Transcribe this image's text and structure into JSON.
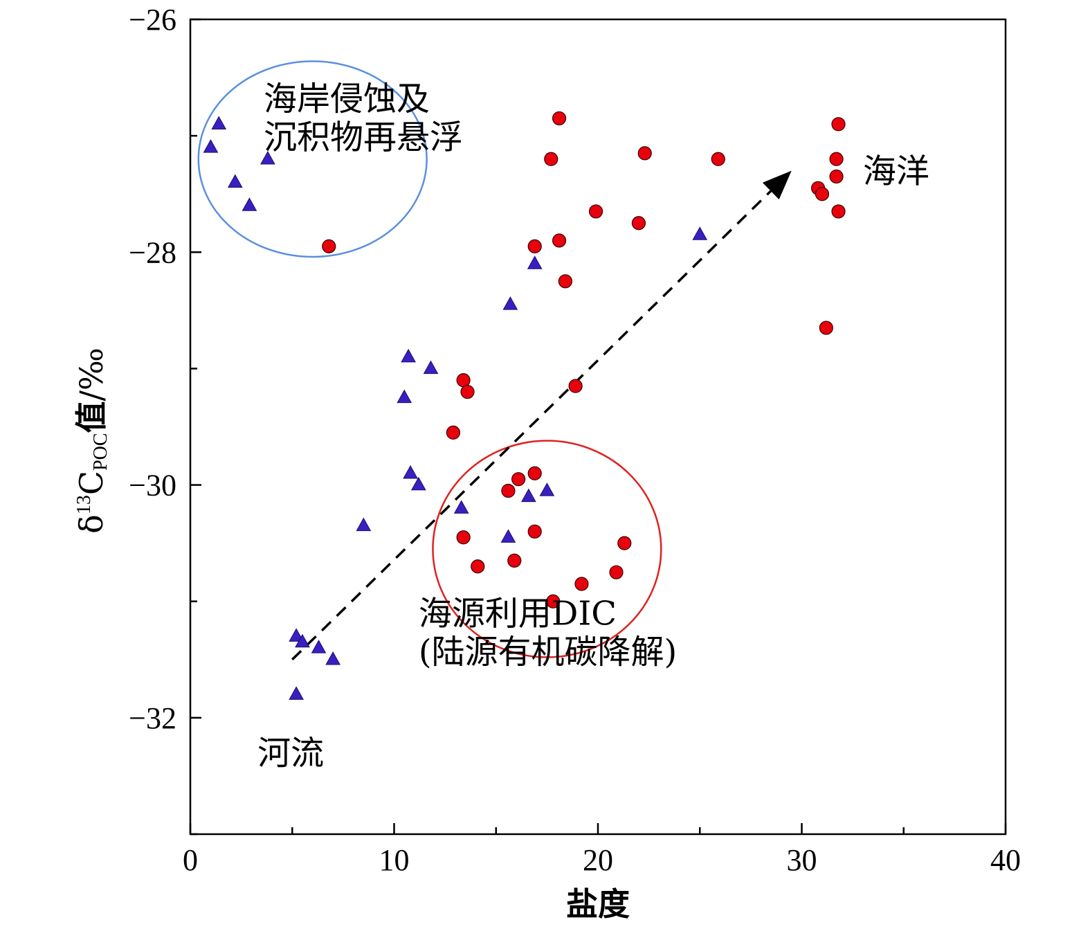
{
  "chart_data": {
    "type": "scatter",
    "title": "",
    "xlabel": "盐度",
    "ylabel": {
      "prefix": "δ",
      "superscript": "13",
      "symbol": "C",
      "subscript": "POC",
      "suffix": "值",
      "unit": "/‰"
    },
    "xlim": [
      0,
      40
    ],
    "ylim": [
      -33,
      -26
    ],
    "x_ticks": [
      0,
      10,
      20,
      30,
      40
    ],
    "y_ticks": [
      -26,
      -28,
      -30,
      -32
    ],
    "x_tick_labels": [
      "0",
      "10",
      "20",
      "30",
      "40"
    ],
    "y_tick_labels": [
      "−26",
      "−28",
      "−30",
      "−32"
    ],
    "grid": false,
    "series": [
      {
        "marker": "triangle",
        "color": "#3a1fc0",
        "points": [
          [
            1.0,
            -27.1
          ],
          [
            1.4,
            -26.9
          ],
          [
            2.2,
            -27.4
          ],
          [
            2.9,
            -27.6
          ],
          [
            3.8,
            -27.2
          ],
          [
            5.2,
            -31.3
          ],
          [
            5.5,
            -31.35
          ],
          [
            6.3,
            -31.4
          ],
          [
            7.0,
            -31.5
          ],
          [
            5.2,
            -31.8
          ],
          [
            8.5,
            -30.35
          ],
          [
            10.5,
            -29.25
          ],
          [
            10.7,
            -28.9
          ],
          [
            11.8,
            -29.0
          ],
          [
            10.8,
            -29.9
          ],
          [
            11.2,
            -30.0
          ],
          [
            13.3,
            -30.2
          ],
          [
            15.7,
            -28.45
          ],
          [
            15.6,
            -30.45
          ],
          [
            16.6,
            -30.1
          ],
          [
            17.5,
            -30.05
          ],
          [
            16.9,
            -28.1
          ],
          [
            25.0,
            -27.85
          ]
        ]
      },
      {
        "marker": "circle",
        "color": "#e8000d",
        "points": [
          [
            6.8,
            -27.95
          ],
          [
            13.4,
            -29.1
          ],
          [
            13.6,
            -29.2
          ],
          [
            12.9,
            -29.55
          ],
          [
            13.4,
            -30.45
          ],
          [
            14.1,
            -30.7
          ],
          [
            15.6,
            -30.05
          ],
          [
            16.1,
            -29.95
          ],
          [
            16.9,
            -29.9
          ],
          [
            16.9,
            -30.4
          ],
          [
            15.9,
            -30.65
          ],
          [
            17.8,
            -31.0
          ],
          [
            19.2,
            -30.85
          ],
          [
            20.9,
            -30.75
          ],
          [
            21.3,
            -30.5
          ],
          [
            18.9,
            -29.15
          ],
          [
            16.9,
            -27.95
          ],
          [
            18.1,
            -27.9
          ],
          [
            18.4,
            -28.25
          ],
          [
            17.7,
            -27.2
          ],
          [
            18.1,
            -26.85
          ],
          [
            19.9,
            -27.65
          ],
          [
            22.0,
            -27.75
          ],
          [
            22.3,
            -27.15
          ],
          [
            25.9,
            -27.2
          ],
          [
            30.8,
            -27.45
          ],
          [
            31.0,
            -27.5
          ],
          [
            31.8,
            -26.9
          ],
          [
            31.7,
            -27.2
          ],
          [
            31.7,
            -27.35
          ],
          [
            31.8,
            -27.65
          ],
          [
            31.2,
            -28.65
          ]
        ]
      }
    ],
    "trend_arrow": {
      "from": [
        5.0,
        -31.5
      ],
      "to": [
        29.5,
        -27.3
      ],
      "style": "dashed"
    },
    "ellipses": [
      {
        "cx": 6.0,
        "cy": -27.2,
        "rx": 5.6,
        "ry": 0.84,
        "color": "#5a8fe0"
      },
      {
        "cx": 17.5,
        "cy": -30.55,
        "rx": 5.6,
        "ry": 0.93,
        "color": "#e02020"
      }
    ],
    "annotations": [
      {
        "lines": [
          "海岸侵蚀及",
          "沉积物再悬浮"
        ],
        "x": 3.6,
        "y": -26.78,
        "line_step": 0.33
      },
      {
        "lines": [
          "海洋"
        ],
        "x": 33.0,
        "y": -27.4,
        "line_step": 0.33
      },
      {
        "lines": [
          "海源利用DIC",
          "(陆源有机碳降解)"
        ],
        "x": 11.2,
        "y": -31.2,
        "line_step": 0.33
      },
      {
        "lines": [
          "河流"
        ],
        "x": 3.3,
        "y": -32.4,
        "line_step": 0.33
      }
    ]
  }
}
